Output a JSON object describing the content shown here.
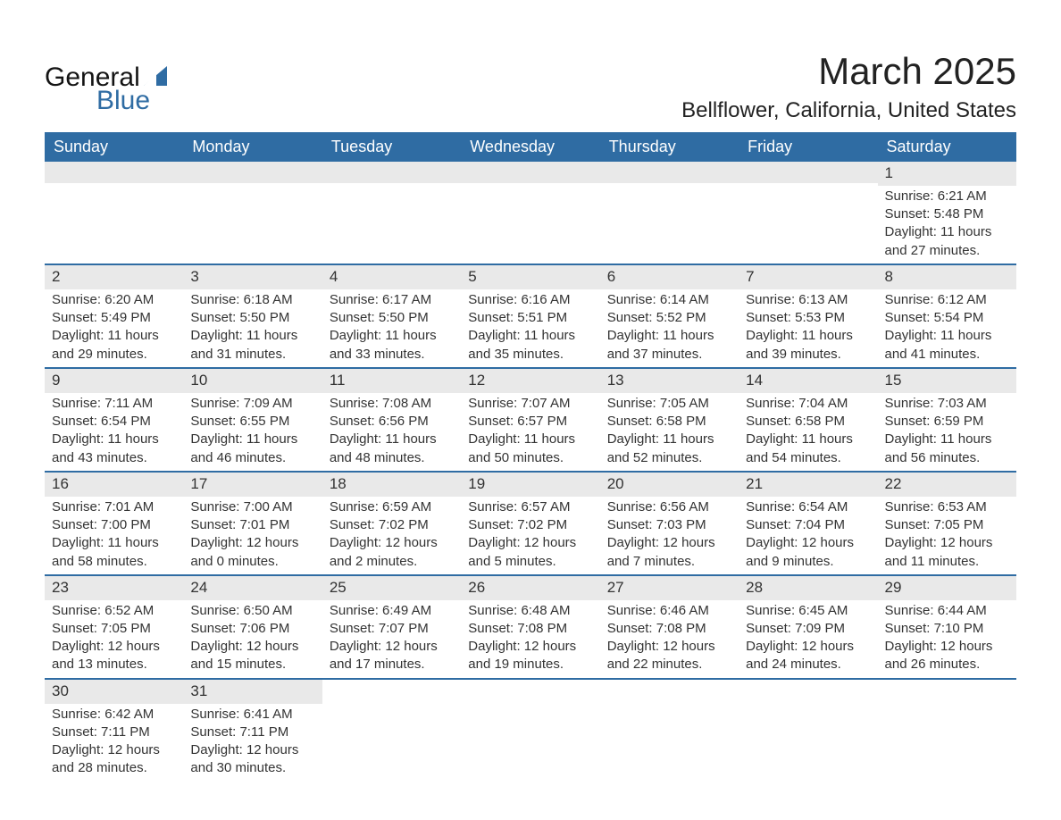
{
  "brand": {
    "word1": "General",
    "word2": "Blue",
    "word1_color": "#141414",
    "word2_color": "#2f6ca3",
    "sail_color": "#2f6ca3"
  },
  "header": {
    "month_title": "March 2025",
    "location": "Bellflower, California, United States",
    "title_color": "#222222"
  },
  "calendar": {
    "header_bg": "#2f6ca3",
    "header_fg": "#ffffff",
    "row_divider_color": "#2f6ca3",
    "daynum_bg": "#e9e9e9",
    "text_color": "#333333",
    "font_size_body": 15,
    "font_size_header": 18,
    "days_of_week": [
      "Sunday",
      "Monday",
      "Tuesday",
      "Wednesday",
      "Thursday",
      "Friday",
      "Saturday"
    ],
    "weeks": [
      [
        {
          "empty": true
        },
        {
          "empty": true
        },
        {
          "empty": true
        },
        {
          "empty": true
        },
        {
          "empty": true
        },
        {
          "empty": true
        },
        {
          "n": "1",
          "sunrise": "Sunrise: 6:21 AM",
          "sunset": "Sunset: 5:48 PM",
          "daylight1": "Daylight: 11 hours",
          "daylight2": "and 27 minutes."
        }
      ],
      [
        {
          "n": "2",
          "sunrise": "Sunrise: 6:20 AM",
          "sunset": "Sunset: 5:49 PM",
          "daylight1": "Daylight: 11 hours",
          "daylight2": "and 29 minutes."
        },
        {
          "n": "3",
          "sunrise": "Sunrise: 6:18 AM",
          "sunset": "Sunset: 5:50 PM",
          "daylight1": "Daylight: 11 hours",
          "daylight2": "and 31 minutes."
        },
        {
          "n": "4",
          "sunrise": "Sunrise: 6:17 AM",
          "sunset": "Sunset: 5:50 PM",
          "daylight1": "Daylight: 11 hours",
          "daylight2": "and 33 minutes."
        },
        {
          "n": "5",
          "sunrise": "Sunrise: 6:16 AM",
          "sunset": "Sunset: 5:51 PM",
          "daylight1": "Daylight: 11 hours",
          "daylight2": "and 35 minutes."
        },
        {
          "n": "6",
          "sunrise": "Sunrise: 6:14 AM",
          "sunset": "Sunset: 5:52 PM",
          "daylight1": "Daylight: 11 hours",
          "daylight2": "and 37 minutes."
        },
        {
          "n": "7",
          "sunrise": "Sunrise: 6:13 AM",
          "sunset": "Sunset: 5:53 PM",
          "daylight1": "Daylight: 11 hours",
          "daylight2": "and 39 minutes."
        },
        {
          "n": "8",
          "sunrise": "Sunrise: 6:12 AM",
          "sunset": "Sunset: 5:54 PM",
          "daylight1": "Daylight: 11 hours",
          "daylight2": "and 41 minutes."
        }
      ],
      [
        {
          "n": "9",
          "sunrise": "Sunrise: 7:11 AM",
          "sunset": "Sunset: 6:54 PM",
          "daylight1": "Daylight: 11 hours",
          "daylight2": "and 43 minutes."
        },
        {
          "n": "10",
          "sunrise": "Sunrise: 7:09 AM",
          "sunset": "Sunset: 6:55 PM",
          "daylight1": "Daylight: 11 hours",
          "daylight2": "and 46 minutes."
        },
        {
          "n": "11",
          "sunrise": "Sunrise: 7:08 AM",
          "sunset": "Sunset: 6:56 PM",
          "daylight1": "Daylight: 11 hours",
          "daylight2": "and 48 minutes."
        },
        {
          "n": "12",
          "sunrise": "Sunrise: 7:07 AM",
          "sunset": "Sunset: 6:57 PM",
          "daylight1": "Daylight: 11 hours",
          "daylight2": "and 50 minutes."
        },
        {
          "n": "13",
          "sunrise": "Sunrise: 7:05 AM",
          "sunset": "Sunset: 6:58 PM",
          "daylight1": "Daylight: 11 hours",
          "daylight2": "and 52 minutes."
        },
        {
          "n": "14",
          "sunrise": "Sunrise: 7:04 AM",
          "sunset": "Sunset: 6:58 PM",
          "daylight1": "Daylight: 11 hours",
          "daylight2": "and 54 minutes."
        },
        {
          "n": "15",
          "sunrise": "Sunrise: 7:03 AM",
          "sunset": "Sunset: 6:59 PM",
          "daylight1": "Daylight: 11 hours",
          "daylight2": "and 56 minutes."
        }
      ],
      [
        {
          "n": "16",
          "sunrise": "Sunrise: 7:01 AM",
          "sunset": "Sunset: 7:00 PM",
          "daylight1": "Daylight: 11 hours",
          "daylight2": "and 58 minutes."
        },
        {
          "n": "17",
          "sunrise": "Sunrise: 7:00 AM",
          "sunset": "Sunset: 7:01 PM",
          "daylight1": "Daylight: 12 hours",
          "daylight2": "and 0 minutes."
        },
        {
          "n": "18",
          "sunrise": "Sunrise: 6:59 AM",
          "sunset": "Sunset: 7:02 PM",
          "daylight1": "Daylight: 12 hours",
          "daylight2": "and 2 minutes."
        },
        {
          "n": "19",
          "sunrise": "Sunrise: 6:57 AM",
          "sunset": "Sunset: 7:02 PM",
          "daylight1": "Daylight: 12 hours",
          "daylight2": "and 5 minutes."
        },
        {
          "n": "20",
          "sunrise": "Sunrise: 6:56 AM",
          "sunset": "Sunset: 7:03 PM",
          "daylight1": "Daylight: 12 hours",
          "daylight2": "and 7 minutes."
        },
        {
          "n": "21",
          "sunrise": "Sunrise: 6:54 AM",
          "sunset": "Sunset: 7:04 PM",
          "daylight1": "Daylight: 12 hours",
          "daylight2": "and 9 minutes."
        },
        {
          "n": "22",
          "sunrise": "Sunrise: 6:53 AM",
          "sunset": "Sunset: 7:05 PM",
          "daylight1": "Daylight: 12 hours",
          "daylight2": "and 11 minutes."
        }
      ],
      [
        {
          "n": "23",
          "sunrise": "Sunrise: 6:52 AM",
          "sunset": "Sunset: 7:05 PM",
          "daylight1": "Daylight: 12 hours",
          "daylight2": "and 13 minutes."
        },
        {
          "n": "24",
          "sunrise": "Sunrise: 6:50 AM",
          "sunset": "Sunset: 7:06 PM",
          "daylight1": "Daylight: 12 hours",
          "daylight2": "and 15 minutes."
        },
        {
          "n": "25",
          "sunrise": "Sunrise: 6:49 AM",
          "sunset": "Sunset: 7:07 PM",
          "daylight1": "Daylight: 12 hours",
          "daylight2": "and 17 minutes."
        },
        {
          "n": "26",
          "sunrise": "Sunrise: 6:48 AM",
          "sunset": "Sunset: 7:08 PM",
          "daylight1": "Daylight: 12 hours",
          "daylight2": "and 19 minutes."
        },
        {
          "n": "27",
          "sunrise": "Sunrise: 6:46 AM",
          "sunset": "Sunset: 7:08 PM",
          "daylight1": "Daylight: 12 hours",
          "daylight2": "and 22 minutes."
        },
        {
          "n": "28",
          "sunrise": "Sunrise: 6:45 AM",
          "sunset": "Sunset: 7:09 PM",
          "daylight1": "Daylight: 12 hours",
          "daylight2": "and 24 minutes."
        },
        {
          "n": "29",
          "sunrise": "Sunrise: 6:44 AM",
          "sunset": "Sunset: 7:10 PM",
          "daylight1": "Daylight: 12 hours",
          "daylight2": "and 26 minutes."
        }
      ],
      [
        {
          "n": "30",
          "sunrise": "Sunrise: 6:42 AM",
          "sunset": "Sunset: 7:11 PM",
          "daylight1": "Daylight: 12 hours",
          "daylight2": "and 28 minutes."
        },
        {
          "n": "31",
          "sunrise": "Sunrise: 6:41 AM",
          "sunset": "Sunset: 7:11 PM",
          "daylight1": "Daylight: 12 hours",
          "daylight2": "and 30 minutes."
        },
        {
          "empty": true
        },
        {
          "empty": true
        },
        {
          "empty": true
        },
        {
          "empty": true
        },
        {
          "empty": true
        }
      ]
    ]
  }
}
